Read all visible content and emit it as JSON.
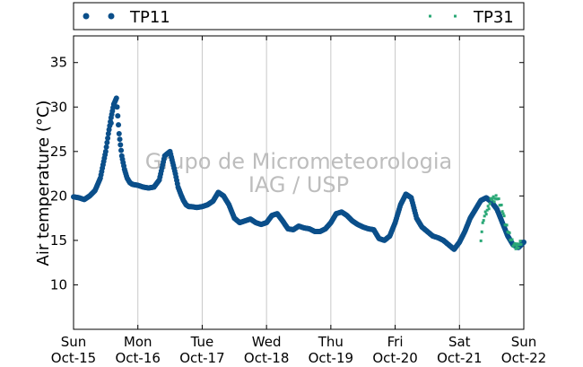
{
  "chart_data": {
    "type": "scatter",
    "ylabel": "Air temperature (°C)",
    "ylim": [
      5,
      38
    ],
    "yticks": [
      10,
      15,
      20,
      25,
      30,
      35
    ],
    "xlim_days": [
      0,
      7
    ],
    "xticks": [
      {
        "day": "Sun",
        "date": "Oct-15"
      },
      {
        "day": "Mon",
        "date": "Oct-16"
      },
      {
        "day": "Tue",
        "date": "Oct-17"
      },
      {
        "day": "Wed",
        "date": "Oct-18"
      },
      {
        "day": "Thu",
        "date": "Oct-19"
      },
      {
        "day": "Fri",
        "date": "Oct-20"
      },
      {
        "day": "Sat",
        "date": "Oct-21"
      },
      {
        "day": "Sun",
        "date": "Oct-22"
      }
    ],
    "grid": "vertical",
    "legend_position": "top",
    "watermark": [
      "Grupo de Micrometeorologia",
      "IAG / USP"
    ],
    "series": [
      {
        "name": "TP11",
        "color": "#0b4f8a",
        "marker": "circle",
        "x": [
          "Oct-15 00:00",
          "Oct-15 02:00",
          "Oct-15 04:00",
          "Oct-15 06:00",
          "Oct-15 08:00",
          "Oct-15 10:00",
          "Oct-15 12:00",
          "Oct-15 13:00",
          "Oct-15 14:00",
          "Oct-15 15:00",
          "Oct-15 16:00",
          "Oct-15 17:00",
          "Oct-15 18:00",
          "Oct-15 19:00",
          "Oct-15 20:00",
          "Oct-15 21:00",
          "Oct-15 22:00",
          "Oct-16 00:00",
          "Oct-16 02:00",
          "Oct-16 04:00",
          "Oct-16 06:00",
          "Oct-16 08:00",
          "Oct-16 10:00",
          "Oct-16 12:00",
          "Oct-16 14:00",
          "Oct-16 15:00",
          "Oct-16 16:00",
          "Oct-16 17:00",
          "Oct-16 18:00",
          "Oct-16 19:00",
          "Oct-16 20:00",
          "Oct-16 22:00",
          "Oct-17 00:00",
          "Oct-17 02:00",
          "Oct-17 04:00",
          "Oct-17 06:00",
          "Oct-17 08:00",
          "Oct-17 10:00",
          "Oct-17 12:00",
          "Oct-17 14:00",
          "Oct-17 16:00",
          "Oct-17 18:00",
          "Oct-17 20:00",
          "Oct-17 22:00",
          "Oct-18 00:00",
          "Oct-18 02:00",
          "Oct-18 04:00",
          "Oct-18 06:00",
          "Oct-18 08:00",
          "Oct-18 10:00",
          "Oct-18 12:00",
          "Oct-18 14:00",
          "Oct-18 16:00",
          "Oct-18 18:00",
          "Oct-18 20:00",
          "Oct-18 22:00",
          "Oct-19 00:00",
          "Oct-19 02:00",
          "Oct-19 04:00",
          "Oct-19 06:00",
          "Oct-19 08:00",
          "Oct-19 10:00",
          "Oct-19 12:00",
          "Oct-19 14:00",
          "Oct-19 16:00",
          "Oct-19 18:00",
          "Oct-19 20:00",
          "Oct-19 22:00",
          "Oct-20 00:00",
          "Oct-20 02:00",
          "Oct-20 04:00",
          "Oct-20 06:00",
          "Oct-20 08:00",
          "Oct-20 10:00",
          "Oct-20 12:00",
          "Oct-20 14:00",
          "Oct-20 16:00",
          "Oct-20 18:00",
          "Oct-20 20:00",
          "Oct-20 22:00",
          "Oct-21 00:00",
          "Oct-21 02:00",
          "Oct-21 04:00",
          "Oct-21 06:00",
          "Oct-21 08:00",
          "Oct-21 10:00",
          "Oct-21 12:00",
          "Oct-21 14:00",
          "Oct-21 16:00",
          "Oct-21 18:00",
          "Oct-21 20:00",
          "Oct-21 22:00",
          "Oct-22 00:00"
        ],
        "y": [
          19.9,
          19.8,
          19.6,
          20.0,
          20.6,
          22.0,
          25.0,
          27.0,
          28.8,
          30.3,
          31.0,
          27.0,
          24.5,
          23.0,
          22.0,
          21.5,
          21.3,
          21.2,
          21.0,
          20.9,
          21.0,
          21.8,
          24.5,
          25.0,
          22.5,
          21.0,
          20.2,
          19.5,
          19.0,
          18.8,
          18.8,
          18.7,
          18.8,
          19.0,
          19.4,
          20.4,
          20.0,
          19.0,
          17.5,
          17.0,
          17.2,
          17.4,
          17.0,
          16.8,
          17.0,
          17.8,
          18.0,
          17.2,
          16.3,
          16.2,
          16.6,
          16.4,
          16.3,
          16.0,
          16.0,
          16.3,
          17.0,
          18.0,
          18.2,
          17.8,
          17.2,
          16.8,
          16.5,
          16.3,
          16.2,
          15.2,
          15.0,
          15.5,
          17.0,
          19.0,
          20.2,
          19.8,
          17.5,
          16.5,
          16.0,
          15.5,
          15.3,
          15.0,
          14.5,
          14.0,
          14.8,
          16.0,
          17.5,
          18.5,
          19.5,
          19.8,
          19.3,
          18.5,
          17.0,
          15.5,
          14.5,
          14.2,
          14.8
        ],
        "outliers": [
          {
            "x": "Oct-15 14:00",
            "y": 28.2
          }
        ]
      },
      {
        "name": "TP31",
        "color": "#2aa876",
        "marker": "square",
        "x": [
          "Oct-21 08:00",
          "Oct-21 09:00",
          "Oct-21 10:00",
          "Oct-21 11:00",
          "Oct-21 12:00",
          "Oct-21 13:00",
          "Oct-21 14:00",
          "Oct-21 15:00",
          "Oct-21 16:00",
          "Oct-21 17:00",
          "Oct-21 18:00",
          "Oct-21 19:00",
          "Oct-21 20:00",
          "Oct-21 21:00",
          "Oct-21 22:00",
          "Oct-21 23:00"
        ],
        "y": [
          15.2,
          17.5,
          18.2,
          18.8,
          19.8,
          19.6,
          19.9,
          19.2,
          18.5,
          17.0,
          16.2,
          15.3,
          14.6,
          14.3,
          14.4,
          14.8
        ]
      }
    ]
  }
}
